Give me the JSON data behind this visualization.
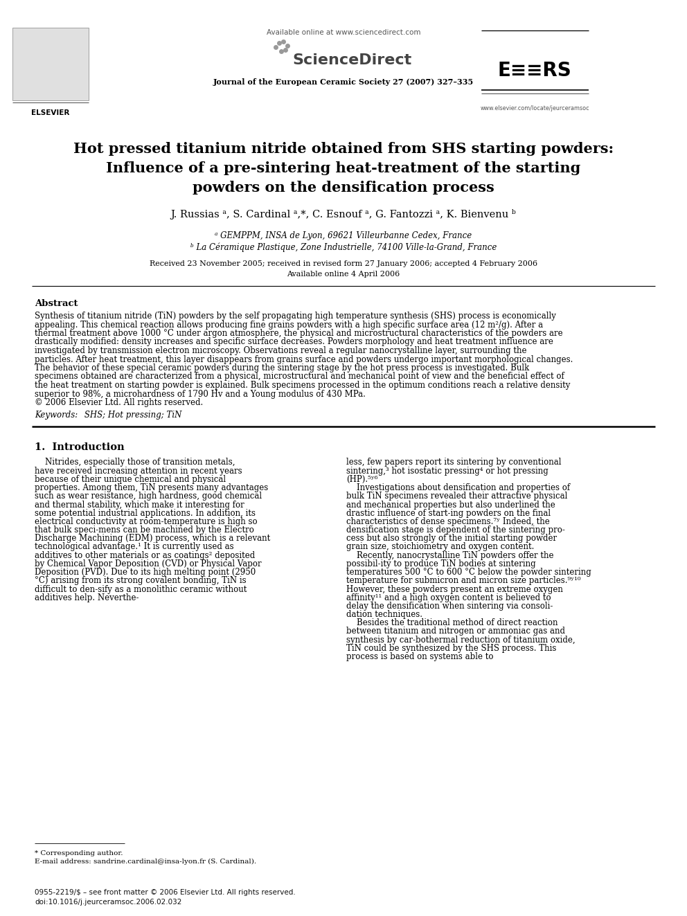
{
  "bg_color": "#ffffff",
  "header_available": "Available online at www.sciencedirect.com",
  "journal_name": "Journal of the European Ceramic Society 27 (2007) 327–335",
  "elsevier_label": "ELSEVIER",
  "sciencedirect_label": "ScienceDirect",
  "ecs_url": "www.elsevier.com/locate/jeurceramsoc",
  "title_line1": "Hot pressed titanium nitride obtained from SHS starting powders:",
  "title_line2": "Influence of a pre-sintering heat-treatment of the starting",
  "title_line3": "powders on the densification process",
  "authors_full": "J. Russias ᵃ, S. Cardinal ᵃ,*, C. Esnouf ᵃ, G. Fantozzi ᵃ, K. Bienvenu ᵇ",
  "affil_a": "ᵃ GEMPPM, INSA de Lyon, 69621 Villeurbanne Cedex, France",
  "affil_b": "ᵇ La Céramique Plastique, Zone Industrielle, 74100 Ville-la-Grand, France",
  "received": "Received 23 November 2005; received in revised form 27 January 2006; accepted 4 February 2006",
  "available": "Available online 4 April 2006",
  "abstract_title": "Abstract",
  "abstract_body": "Synthesis of titanium nitride (TiN) powders by the self propagating high temperature synthesis (SHS) process is economically appealing. This chemical reaction allows producing fine grains powders with a high specific surface area (12 m²/g). After a thermal treatment above 1000 °C under argon atmosphere, the physical and microstructural characteristics of the powders are drastically modified: density increases and specific surface decreases. Powders morphology and heat treatment influence are investigated by transmission electron microscopy. Observations reveal a regular nanocrystalline layer, surrounding the particles. After heat treatment, this layer disappears from grains surface and powders undergo important morphological changes. The behavior of these special ceramic powders during the sintering stage by the hot press process is investigated. Bulk specimens obtained are characterized from a physical, microstructural and mechanical point of view and the beneficial effect of the heat treatment on starting powder is explained. Bulk specimens processed in the optimum conditions reach a relative density superior to 98%, a microhardness of 1790 Hv and a Young modulus of 430 MPa.\n© 2006 Elsevier Ltd. All rights reserved.",
  "keywords_italic": "Keywords:  SHS; Hot pressing; TiN",
  "section1_title": "1.  Introduction",
  "col1_text": "    Nitrides, especially those of transition metals, have received increasing attention in recent years because of their unique chemical and physical properties. Among them, TiN presents many advantages such as wear resistance, high hardness, good chemical and thermal stability, which make it interesting for some potential industrial applications. In addition, its electrical conductivity at room-temperature is high so that bulk speci-mens can be machined by the Electro Discharge Machining (EDM) process, which is a relevant technological advantage.¹ It is currently used as additives to other materials or as coatings² deposited by Chemical Vapor Deposition (CVD) or Physical Vapor Deposition (PVD). Due to its high melting point (2950 °C) arising from its strong covalent bonding, TiN is difficult to den-sify as a monolithic ceramic without additives help. Neverthe-",
  "col2_text": "less, few papers report its sintering by conventional sintering,³ hot isostatic pressing⁴ or hot pressing (HP).⁵ʸ⁶\n    Investigations about densification and properties of bulk TiN specimens revealed their attractive physical and mechanical properties but also underlined the drastic influence of start-ing powders on the final characteristics of dense specimens.⁷ʸ Indeed, the densification stage is dependent of the sintering pro-cess but also strongly of the initial starting powder grain size, stoichiometry and oxygen content.\n    Recently, nanocrystalline TiN powders offer the possibil-ity to produce TiN bodies at sintering temperatures 500 °C to 600 °C below the powder sintering temperature for submicron and micron size particles.⁹ʸ¹⁰ However, these powders present an extreme oxygen affinity¹¹ and a high oxygen content is believed to delay the densification when sintering via consoli-dation techniques.\n    Besides the traditional method of direct reaction between titanium and nitrogen or ammoniac gas and synthesis by car-bothermal reduction of titanium oxide, TiN could be synthesized by the SHS process. This process is based on systems able to",
  "footnote_star": "* Corresponding author.",
  "footnote_email": "E-mail address: sandrine.cardinal@insa-lyon.fr (S. Cardinal).",
  "footer_issn": "0955-2219/$ – see front matter © 2006 Elsevier Ltd. All rights reserved.",
  "footer_doi": "doi:10.1016/j.jeurceramsoc.2006.02.032"
}
